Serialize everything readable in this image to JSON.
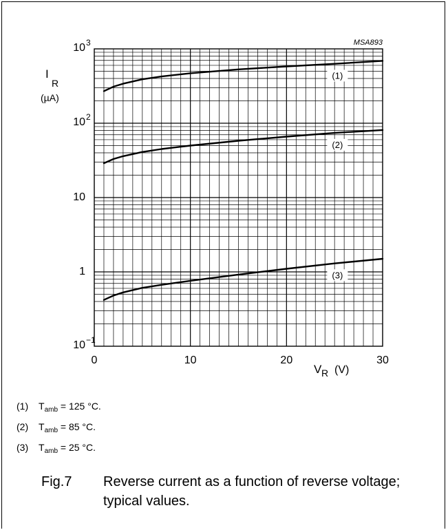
{
  "chart_data": {
    "type": "line",
    "code": "MSA893",
    "y_scale": "log",
    "xlim": [
      0,
      30
    ],
    "ylim": [
      0.1,
      1000
    ],
    "x_ticks": [
      {
        "value": 0,
        "label": "0"
      },
      {
        "value": 10,
        "label": "10"
      },
      {
        "value": 20,
        "label": "20"
      },
      {
        "value": 30,
        "label": "30"
      }
    ],
    "y_ticks": [
      {
        "value": 1000,
        "base": "10",
        "exp": "3"
      },
      {
        "value": 100,
        "base": "10",
        "exp": "2"
      },
      {
        "value": 10,
        "base": "10",
        "exp": ""
      },
      {
        "value": 1,
        "base": "1",
        "exp": ""
      },
      {
        "value": 0.1,
        "base": "10",
        "exp": "−1"
      }
    ],
    "ylabel": {
      "symbol": "I",
      "sub": "R",
      "unit": "(µA)"
    },
    "xlabel": {
      "symbol": "V",
      "sub": "R",
      "unit": "(V)"
    },
    "grid": true,
    "series": [
      {
        "name": "(1)",
        "label_x": 25.3,
        "x": [
          1,
          2,
          3,
          5,
          7,
          10,
          15,
          20,
          25,
          30
        ],
        "y": [
          270,
          310,
          340,
          390,
          425,
          470,
          530,
          580,
          630,
          690
        ]
      },
      {
        "name": "(2)",
        "label_x": 25.3,
        "x": [
          1,
          2,
          3,
          5,
          7,
          10,
          15,
          20,
          25,
          30
        ],
        "y": [
          29,
          33,
          36,
          41,
          45,
          50,
          58,
          66,
          74,
          81
        ]
      },
      {
        "name": "(3)",
        "label_x": 25.3,
        "x": [
          1,
          2,
          3,
          5,
          7,
          10,
          15,
          20,
          25,
          30
        ],
        "y": [
          0.42,
          0.48,
          0.53,
          0.61,
          0.67,
          0.76,
          0.92,
          1.1,
          1.3,
          1.5
        ]
      }
    ]
  },
  "legend": [
    {
      "num": "(1)",
      "sym": "T",
      "sub": "amb",
      "val": " = 125 °C."
    },
    {
      "num": "(2)",
      "sym": "T",
      "sub": "amb",
      "val": " = 85 °C."
    },
    {
      "num": "(3)",
      "sym": "T",
      "sub": "amb",
      "val": " = 25 °C."
    }
  ],
  "caption": {
    "fig": "Fig.7",
    "text": "Reverse current as a function of reverse voltage; typical values."
  }
}
